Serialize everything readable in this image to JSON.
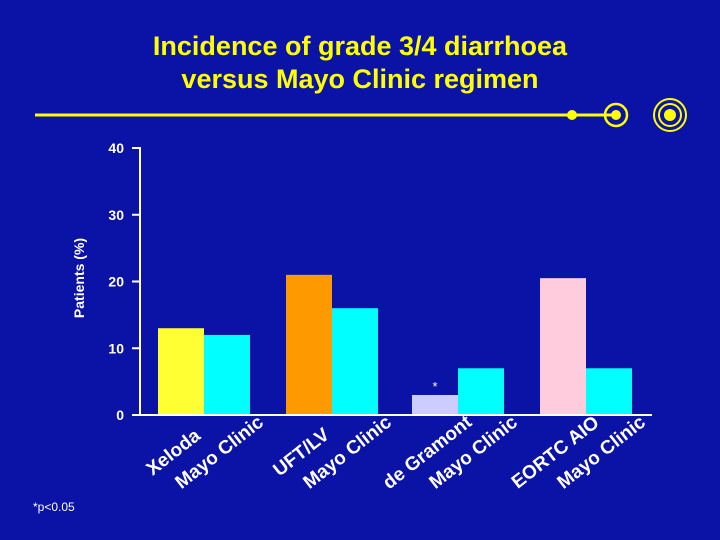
{
  "slide": {
    "title_line1": "Incidence of grade 3/4 diarrhoea",
    "title_line2": "versus Mayo Clinic regimen",
    "footnote": "*p<0.05"
  },
  "colors": {
    "background": "#0b12a6",
    "title": "#ffff00",
    "mayo": "#00ffff",
    "xeloda": "#ffff33",
    "uft_lv": "#ff9900",
    "de_gramont": "#ccccff",
    "eortc_aio": "#ffccdd"
  },
  "chart_data": {
    "type": "bar",
    "title": "",
    "xlabel": "",
    "ylabel": "Patients (%)",
    "ylim": [
      0,
      40
    ],
    "yticks": [
      "0",
      "10",
      "20",
      "30",
      "40"
    ],
    "categories": [
      "Xeloda",
      "Mayo Clinic",
      "UFT/LV",
      "Mayo Clinic",
      "de Gramont",
      "Mayo Clinic",
      "EORTC AIO",
      "Mayo Clinic"
    ],
    "values": [
      13,
      12,
      21,
      16,
      3,
      7,
      20.5,
      7
    ],
    "bar_colors": [
      "#ffff33",
      "#00ffff",
      "#ff9900",
      "#00ffff",
      "#ccccff",
      "#00ffff",
      "#ffccdd",
      "#00ffff"
    ],
    "annotations": [
      {
        "category_index": 4,
        "text": "*"
      }
    ],
    "grid": false
  }
}
